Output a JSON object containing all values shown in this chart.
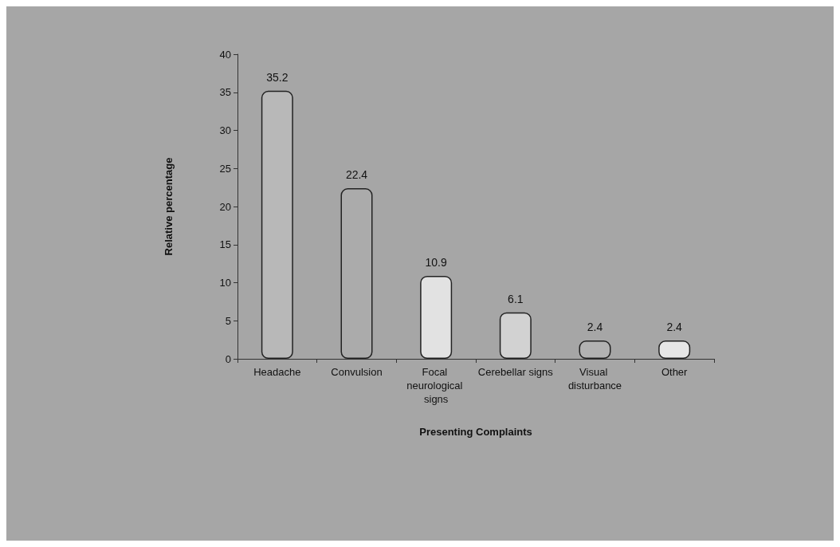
{
  "chart_data": {
    "type": "bar",
    "xlabel": "Presenting Complaints",
    "ylabel": "Relative percentage",
    "categories": [
      "Headache",
      "Convulsion",
      "Focal neurological signs",
      "Cerebellar signs",
      "Visual disturbance",
      "Other"
    ],
    "values": [
      35.2,
      22.4,
      10.9,
      6.1,
      2.4,
      2.4
    ],
    "colors": [
      "#b8b8b8",
      "#ababab",
      "#e2e2e2",
      "#d2d2d2",
      "#b2b2b2",
      "#e6e6e6"
    ],
    "ylim": [
      0,
      40
    ],
    "yticks": [
      0,
      5,
      10,
      15,
      20,
      25,
      30,
      35,
      40
    ],
    "grid": false,
    "data_labels": true
  }
}
